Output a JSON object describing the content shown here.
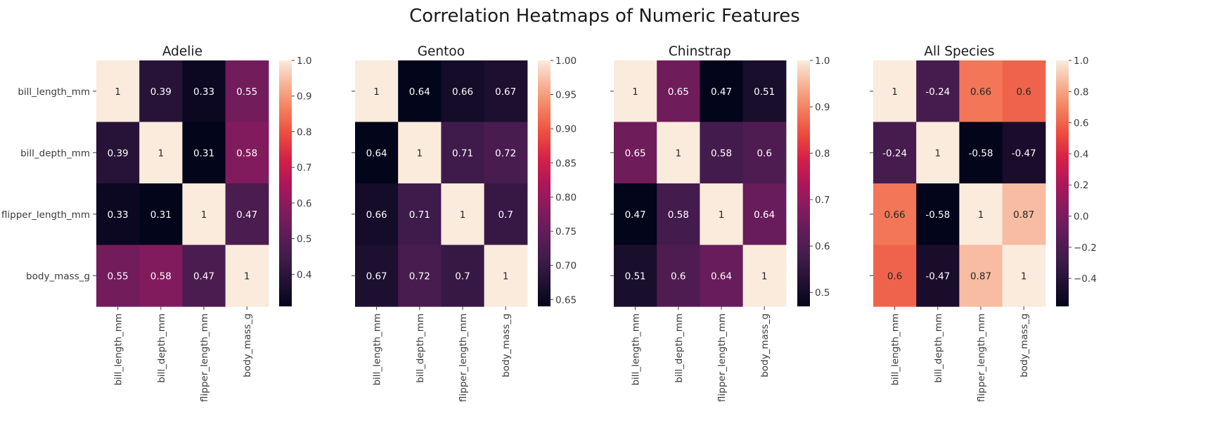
{
  "figure": {
    "suptitle": "Correlation Heatmaps of Numeric Features"
  },
  "chart_data": [
    {
      "type": "heatmap",
      "title": "Adelie",
      "rows": [
        "bill_length_mm",
        "bill_depth_mm",
        "flipper_length_mm",
        "body_mass_g"
      ],
      "cols": [
        "bill_length_mm",
        "bill_depth_mm",
        "flipper_length_mm",
        "body_mass_g"
      ],
      "labels": [
        [
          "1",
          "0.39",
          "0.33",
          "0.55"
        ],
        [
          "0.39",
          "1",
          "0.31",
          "0.58"
        ],
        [
          "0.33",
          "0.31",
          "1",
          "0.47"
        ],
        [
          "0.55",
          "0.58",
          "0.47",
          "1"
        ]
      ],
      "values": [
        [
          1,
          0.39,
          0.33,
          0.55
        ],
        [
          0.39,
          1,
          0.31,
          0.58
        ],
        [
          0.33,
          0.31,
          1,
          0.47
        ],
        [
          0.55,
          0.58,
          0.47,
          1
        ]
      ],
      "vmin": 0.31,
      "vmax": 1.0,
      "colorbar_ticks": [
        0.4,
        0.5,
        0.6,
        0.7,
        0.8,
        0.9,
        1.0
      ],
      "colorbar_labels": [
        "0.4",
        "0.5",
        "0.6",
        "0.7",
        "0.8",
        "0.9",
        "1.0"
      ],
      "show_ylabels": true
    },
    {
      "type": "heatmap",
      "title": "Gentoo",
      "rows": [
        "bill_length_mm",
        "bill_depth_mm",
        "flipper_length_mm",
        "body_mass_g"
      ],
      "cols": [
        "bill_length_mm",
        "bill_depth_mm",
        "flipper_length_mm",
        "body_mass_g"
      ],
      "labels": [
        [
          "1",
          "0.64",
          "0.66",
          "0.67"
        ],
        [
          "0.64",
          "1",
          "0.71",
          "0.72"
        ],
        [
          "0.66",
          "0.71",
          "1",
          "0.7"
        ],
        [
          "0.67",
          "0.72",
          "0.7",
          "1"
        ]
      ],
      "values": [
        [
          1,
          0.64,
          0.66,
          0.67
        ],
        [
          0.64,
          1,
          0.71,
          0.72
        ],
        [
          0.66,
          0.71,
          1,
          0.7
        ],
        [
          0.67,
          0.72,
          0.7,
          1
        ]
      ],
      "vmin": 0.64,
      "vmax": 1.0,
      "colorbar_ticks": [
        0.65,
        0.7,
        0.75,
        0.8,
        0.85,
        0.9,
        0.95,
        1.0
      ],
      "colorbar_labels": [
        "0.65",
        "0.70",
        "0.75",
        "0.80",
        "0.85",
        "0.90",
        "0.95",
        "1.00"
      ],
      "show_ylabels": false
    },
    {
      "type": "heatmap",
      "title": "Chinstrap",
      "rows": [
        "bill_length_mm",
        "bill_depth_mm",
        "flipper_length_mm",
        "body_mass_g"
      ],
      "cols": [
        "bill_length_mm",
        "bill_depth_mm",
        "flipper_length_mm",
        "body_mass_g"
      ],
      "labels": [
        [
          "1",
          "0.65",
          "0.47",
          "0.51"
        ],
        [
          "0.65",
          "1",
          "0.58",
          "0.6"
        ],
        [
          "0.47",
          "0.58",
          "1",
          "0.64"
        ],
        [
          "0.51",
          "0.6",
          "0.64",
          "1"
        ]
      ],
      "values": [
        [
          1,
          0.65,
          0.47,
          0.51
        ],
        [
          0.65,
          1,
          0.58,
          0.6
        ],
        [
          0.47,
          0.58,
          1,
          0.64
        ],
        [
          0.51,
          0.6,
          0.64,
          1
        ]
      ],
      "vmin": 0.47,
      "vmax": 1.0,
      "colorbar_ticks": [
        0.5,
        0.6,
        0.7,
        0.8,
        0.9,
        1.0
      ],
      "colorbar_labels": [
        "0.5",
        "0.6",
        "0.7",
        "0.8",
        "0.9",
        "1.0"
      ],
      "show_ylabels": false
    },
    {
      "type": "heatmap",
      "title": "All Species",
      "rows": [
        "bill_length_mm",
        "bill_depth_mm",
        "flipper_length_mm",
        "body_mass_g"
      ],
      "cols": [
        "bill_length_mm",
        "bill_depth_mm",
        "flipper_length_mm",
        "body_mass_g"
      ],
      "labels": [
        [
          "1",
          "-0.24",
          "0.66",
          "0.6"
        ],
        [
          "-0.24",
          "1",
          "-0.58",
          "-0.47"
        ],
        [
          "0.66",
          "-0.58",
          "1",
          "0.87"
        ],
        [
          "0.6",
          "-0.47",
          "0.87",
          "1"
        ]
      ],
      "values": [
        [
          1,
          -0.24,
          0.66,
          0.6
        ],
        [
          -0.24,
          1,
          -0.58,
          -0.47
        ],
        [
          0.66,
          -0.58,
          1,
          0.87
        ],
        [
          0.6,
          -0.47,
          0.87,
          1
        ]
      ],
      "vmin": -0.58,
      "vmax": 1.0,
      "colorbar_ticks": [
        -0.4,
        -0.2,
        0.0,
        0.2,
        0.4,
        0.6,
        0.8,
        1.0
      ],
      "colorbar_labels": [
        "−0.4",
        "−0.2",
        "0.0",
        "0.2",
        "0.4",
        "0.6",
        "0.8",
        "1.0"
      ],
      "show_ylabels": false
    }
  ]
}
